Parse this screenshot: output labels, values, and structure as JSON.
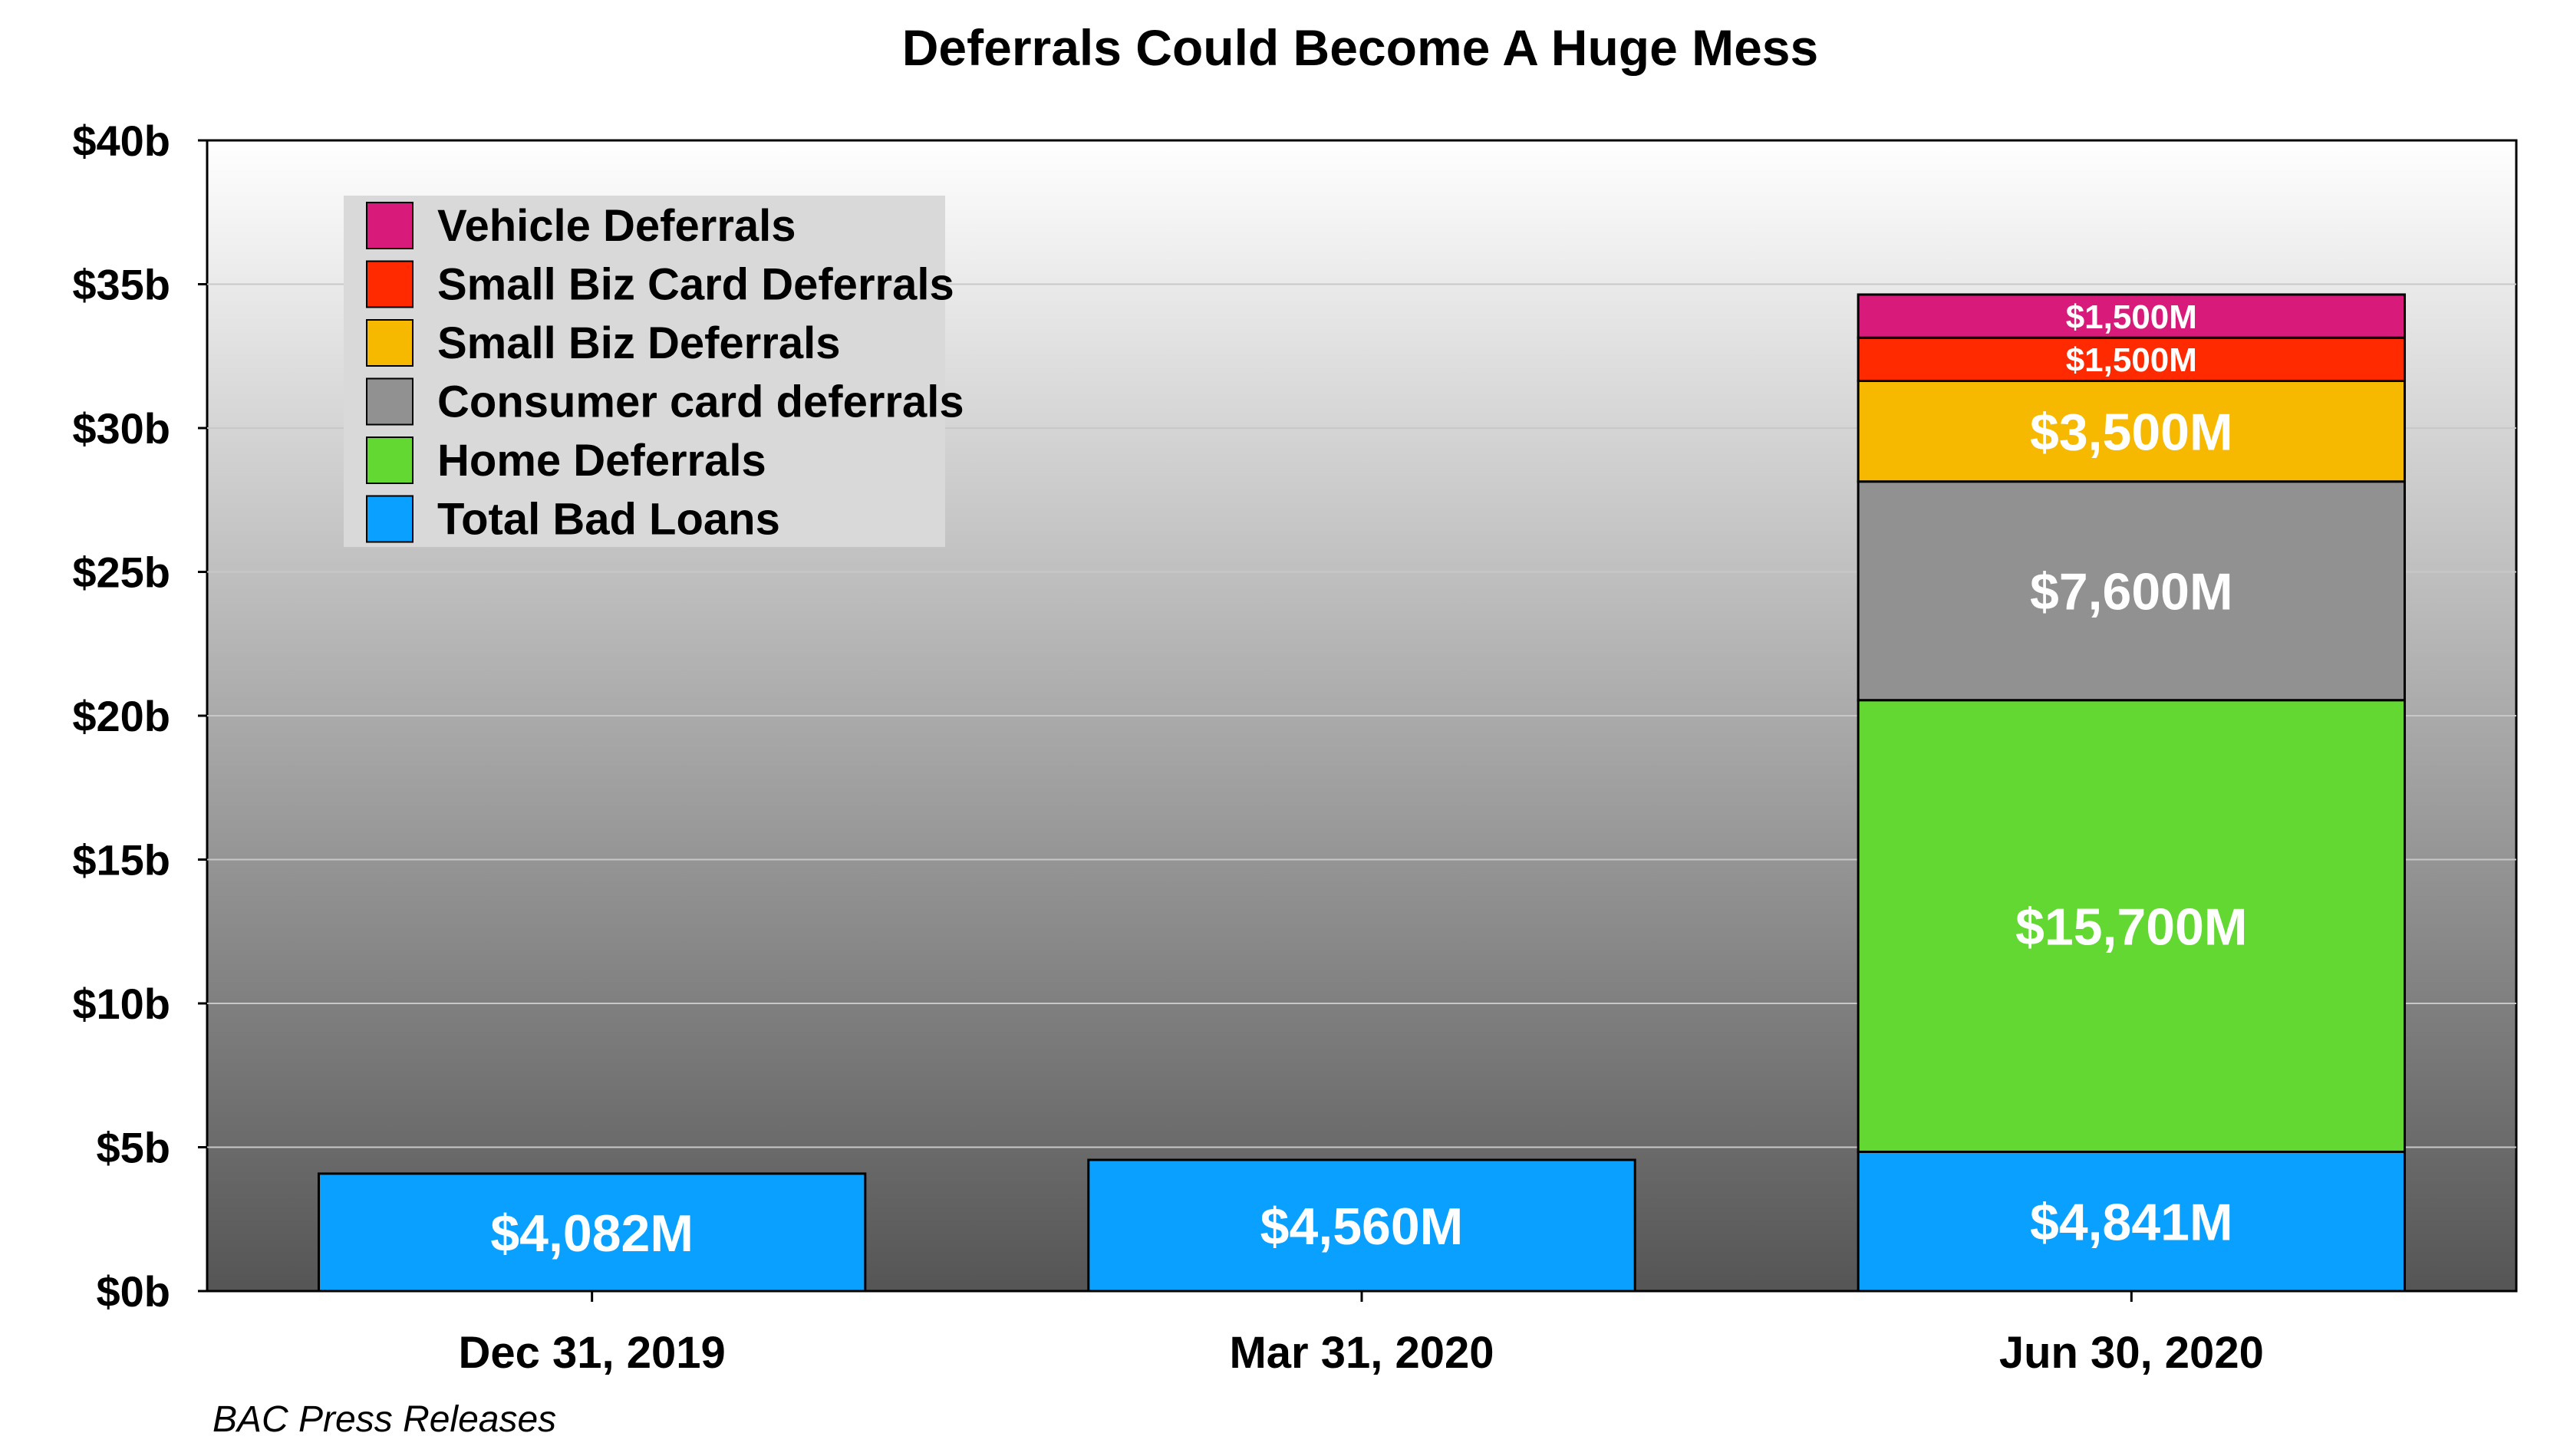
{
  "chart_data": {
    "type": "bar",
    "stacked": true,
    "title": "Deferrals Could Become A Huge Mess",
    "source": "BAC Press Releases",
    "xlabel": "",
    "ylabel": "",
    "ylim": [
      0,
      40
    ],
    "y_unit": "billions USD",
    "y_ticks": [
      0,
      5,
      10,
      15,
      20,
      25,
      30,
      35,
      40
    ],
    "y_tick_labels": [
      "$0b",
      "$5b",
      "$10b",
      "$15b",
      "$20b",
      "$25b",
      "$30b",
      "$35b",
      "$40b"
    ],
    "categories": [
      "Dec 31, 2019",
      "Mar 31, 2020",
      "Jun 30, 2020"
    ],
    "grid": true,
    "legend_position": "top-left",
    "series": [
      {
        "name": "Total Bad Loans",
        "color": "#0aa0ff",
        "values": [
          4.082,
          4.56,
          4.841
        ],
        "labels": [
          "$4,082M",
          "$4,560M",
          "$4,841M"
        ]
      },
      {
        "name": "Home Deferrals",
        "color": "#63d832",
        "values": [
          0,
          0,
          15.7
        ],
        "labels": [
          "",
          "",
          "$15,700M"
        ]
      },
      {
        "name": "Consumer card deferrals",
        "color": "#919191",
        "values": [
          0,
          0,
          7.6
        ],
        "labels": [
          "",
          "",
          "$7,600M"
        ]
      },
      {
        "name": "Small Biz Deferrals",
        "color": "#f7b900",
        "values": [
          0,
          0,
          3.5
        ],
        "labels": [
          "",
          "",
          "$3,500M"
        ]
      },
      {
        "name": "Small Biz Card Deferrals",
        "color": "#ff2a00",
        "values": [
          0,
          0,
          1.5
        ],
        "labels": [
          "",
          "",
          "$1,500M"
        ]
      },
      {
        "name": "Vehicle Deferrals",
        "color": "#d81b7a",
        "values": [
          0,
          0,
          1.5
        ],
        "labels": [
          "",
          "",
          "$1,500M"
        ]
      }
    ]
  }
}
